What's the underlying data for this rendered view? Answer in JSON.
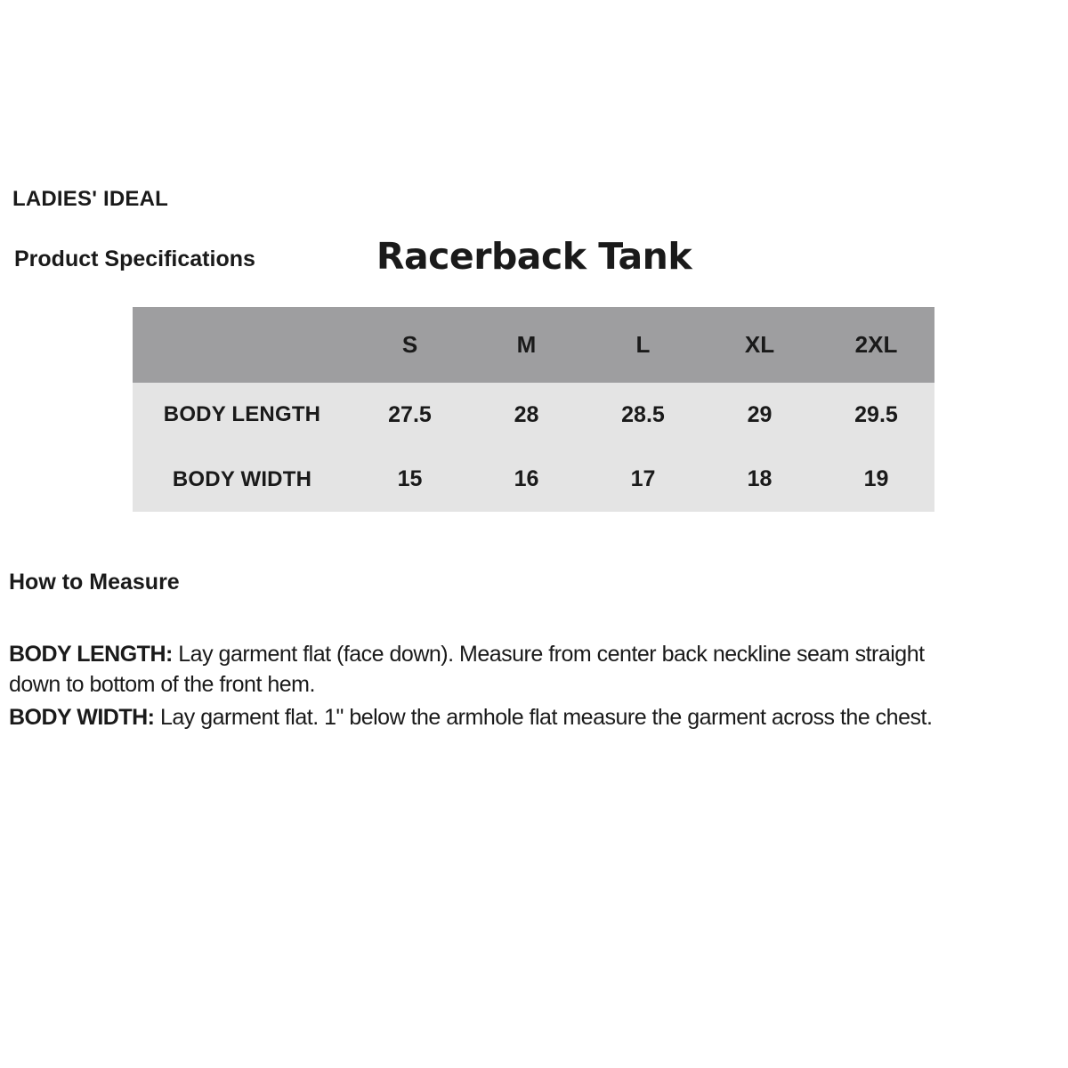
{
  "header": {
    "brand": "LADIES' IDEAL",
    "section_title": "Product Specifications",
    "product_title": "Racerback Tank"
  },
  "size_chart": {
    "columns": [
      "S",
      "M",
      "L",
      "XL",
      "2XL"
    ],
    "rows": [
      {
        "label": "BODY LENGTH",
        "values": [
          "27.5",
          "28",
          "28.5",
          "29",
          "29.5"
        ]
      },
      {
        "label": "BODY WIDTH",
        "values": [
          "15",
          "16",
          "17",
          "18",
          "19"
        ]
      }
    ],
    "colors": {
      "header_bg": "#9e9ea0",
      "body_bg": "#e4e4e4"
    }
  },
  "how_to_measure": {
    "heading": "How to Measure",
    "items": [
      {
        "label": "BODY LENGTH:",
        "text": "Lay garment flat (face down). Measure from center back neckline seam straight\ndown to bottom of the front hem."
      },
      {
        "label": "BODY WIDTH:",
        "text": "Lay garment flat. 1\" below the armhole flat measure the garment across the chest."
      }
    ]
  }
}
